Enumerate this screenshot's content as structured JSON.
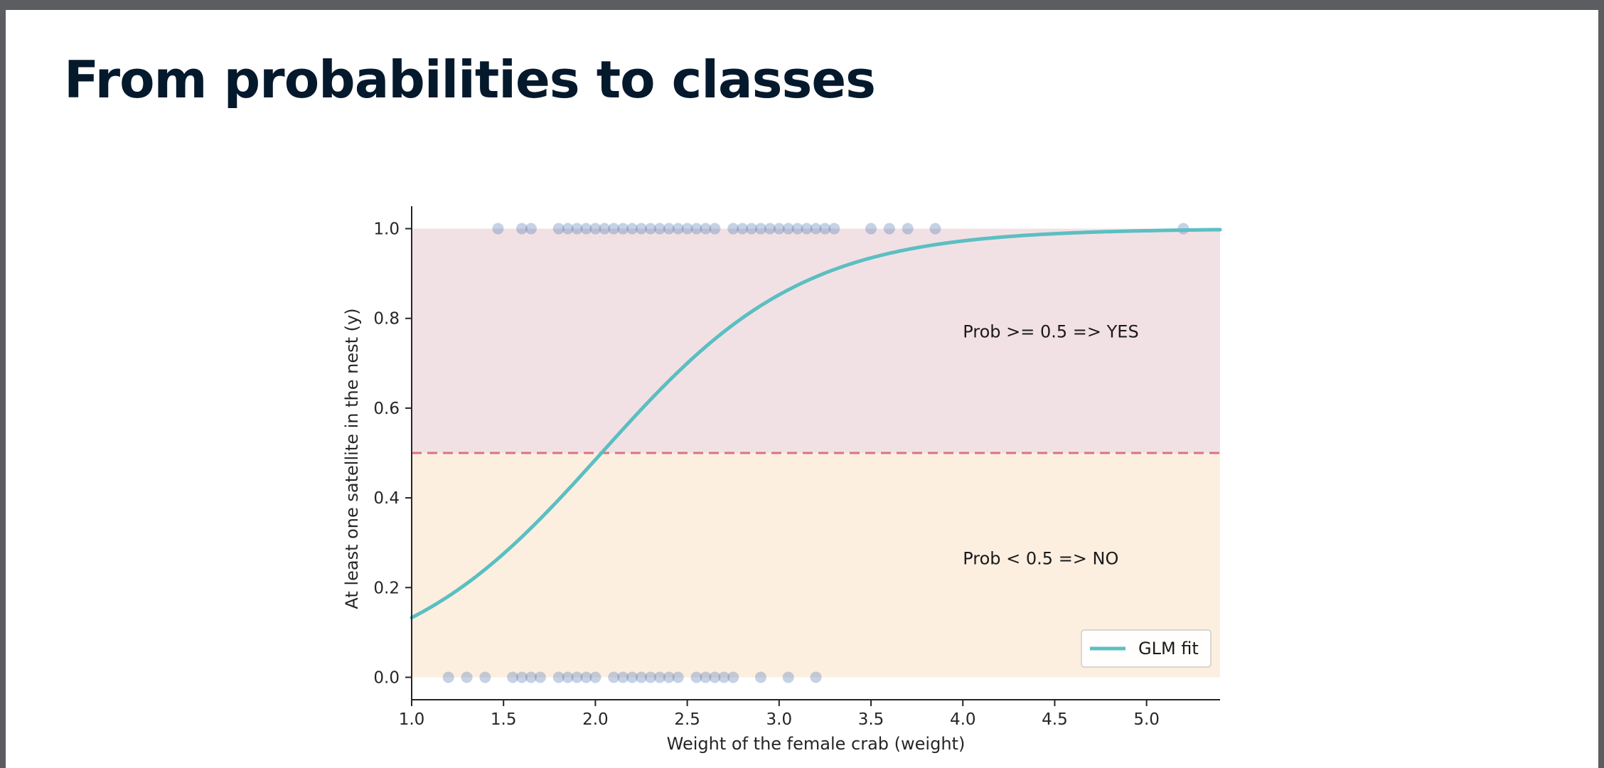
{
  "slide": {
    "title": "From probabilities to classes"
  },
  "chart_data": {
    "type": "scatter",
    "xlabel": "Weight of the female crab (weight)",
    "ylabel": "At least one satellite in the nest (y)",
    "xlim": [
      1.0,
      5.4
    ],
    "ylim": [
      -0.05,
      1.05
    ],
    "xticks": [
      "1.0",
      "1.5",
      "2.0",
      "2.5",
      "3.0",
      "3.5",
      "4.0",
      "4.5",
      "5.0"
    ],
    "yticks": [
      "0.0",
      "0.2",
      "0.4",
      "0.6",
      "0.8",
      "1.0"
    ],
    "threshold": 0.5,
    "regions": [
      {
        "label": "Prob >= 0.5 => YES",
        "from": 0.5,
        "to": 1.0,
        "color": "#f2e1e4"
      },
      {
        "label": "Prob < 0.5 => NO",
        "from": 0.0,
        "to": 0.5,
        "color": "#fcefe0"
      }
    ],
    "annotations": [
      {
        "text": "Prob >= 0.5 => YES",
        "x": 4.0,
        "y": 0.77
      },
      {
        "text": "Prob < 0.5 => NO",
        "x": 4.0,
        "y": 0.265
      }
    ],
    "glm_fit": {
      "name": "GLM fit",
      "intercept": -3.69,
      "slope": 1.815,
      "x_range": [
        1.0,
        5.4
      ],
      "color": "#5bbfc2"
    },
    "points_y0": [
      1.2,
      1.3,
      1.4,
      1.55,
      1.6,
      1.65,
      1.7,
      1.8,
      1.85,
      1.9,
      1.95,
      2.0,
      2.1,
      2.15,
      2.2,
      2.25,
      2.3,
      2.35,
      2.4,
      2.45,
      2.55,
      2.6,
      2.65,
      2.7,
      2.75,
      2.9,
      3.05,
      3.2
    ],
    "points_y1": [
      1.47,
      1.6,
      1.65,
      1.8,
      1.85,
      1.9,
      1.95,
      2.0,
      2.05,
      2.1,
      2.15,
      2.2,
      2.25,
      2.3,
      2.35,
      2.4,
      2.45,
      2.5,
      2.55,
      2.6,
      2.65,
      2.75,
      2.8,
      2.85,
      2.9,
      2.95,
      3.0,
      3.05,
      3.1,
      3.15,
      3.2,
      3.25,
      3.3,
      3.5,
      3.6,
      3.7,
      3.85,
      5.2
    ],
    "point_color": "#4c72b0",
    "threshold_color": "#d9747e",
    "legend": {
      "position": "lower-right",
      "entries": [
        "GLM fit"
      ]
    },
    "grid": false
  }
}
